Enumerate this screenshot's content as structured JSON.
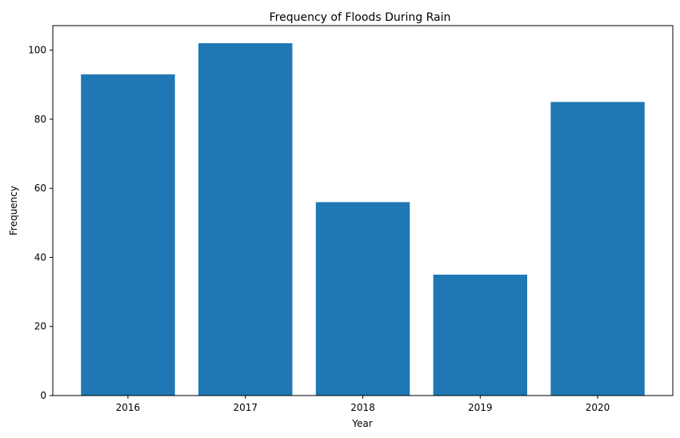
{
  "chart_data": {
    "type": "bar",
    "title": "Frequency of Floods During Rain",
    "xlabel": "Year",
    "ylabel": "Frequency",
    "categories": [
      "2016",
      "2017",
      "2018",
      "2019",
      "2020"
    ],
    "values": [
      93,
      102,
      56,
      35,
      85
    ],
    "ylim": [
      0,
      107.1
    ],
    "yticks": [
      0,
      20,
      40,
      60,
      80,
      100
    ],
    "grid": false,
    "legend": false,
    "bar_color": "#1f77b4"
  }
}
